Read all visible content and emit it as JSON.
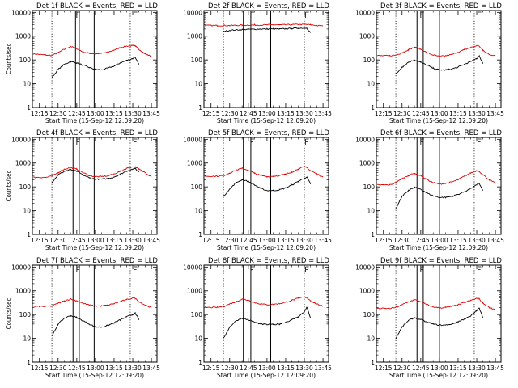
{
  "colors": {
    "events": "#000000",
    "lld": "#dd0000",
    "background": "#ffffff"
  },
  "chart_data": [
    {
      "type": "line",
      "title": "Det 1f BLACK = Events, RED = LLD",
      "xlabel": "Start Time (15-Sep-12 12:09:20)",
      "ylabel": "Counts/sec",
      "xtick_labels": [
        "12:15",
        "12:30",
        "12:45",
        "13:00",
        "13:15",
        "13:30",
        "13:45"
      ],
      "ytick_labels": [
        "1",
        "10",
        "100",
        "1000",
        "10000"
      ],
      "yscale": "log",
      "ylim": [
        1,
        12000
      ],
      "x": [
        "12:10",
        "12:20",
        "12:25",
        "12:30",
        "12:35",
        "12:40",
        "12:45",
        "12:50",
        "12:55",
        "13:00",
        "13:05",
        "13:10",
        "13:15",
        "13:20",
        "13:25",
        "13:30",
        "13:32",
        "13:35",
        "13:40",
        "13:45"
      ],
      "series": [
        {
          "color": "#dd0000",
          "values": [
            180,
            160,
            155,
            200,
            280,
            370,
            300,
            220,
            190,
            180,
            190,
            210,
            260,
            330,
            380,
            400,
            380,
            280,
            180,
            140
          ]
        },
        {
          "color": "#000000",
          "values": [
            null,
            null,
            18,
            40,
            65,
            85,
            75,
            60,
            48,
            40,
            38,
            45,
            55,
            75,
            95,
            115,
            130,
            65,
            null,
            null
          ]
        }
      ],
      "vlines_solid": [
        "12:44",
        "12:47",
        "12:59"
      ],
      "vlines_dotted": [
        "12:25",
        "13:28"
      ],
      "flag_marks": [
        "12:45",
        "13:31"
      ]
    },
    {
      "type": "line",
      "title": "Det 2f BLACK = Events, RED = LLD",
      "xlabel": "Start Time (15-Sep-12 12:09:20)",
      "ylabel": "",
      "xtick_labels": [
        "12:15",
        "12:30",
        "12:45",
        "13:00",
        "13:15",
        "13:30",
        "13:45"
      ],
      "ytick_labels": [
        "1",
        "10",
        "100",
        "1000",
        "10000"
      ],
      "yscale": "log",
      "ylim": [
        1,
        12000
      ],
      "x": [
        "12:10",
        "12:20",
        "12:25",
        "12:30",
        "12:35",
        "12:40",
        "12:45",
        "12:50",
        "12:55",
        "13:00",
        "13:05",
        "13:10",
        "13:15",
        "13:20",
        "13:25",
        "13:30",
        "13:32",
        "13:35",
        "13:40",
        "13:45"
      ],
      "series": [
        {
          "color": "#dd0000",
          "values": [
            2800,
            2800,
            2800,
            2800,
            2850,
            2900,
            2900,
            2950,
            2950,
            3000,
            3000,
            3000,
            3000,
            3050,
            3100,
            3100,
            3100,
            3000,
            2800,
            2700
          ]
        },
        {
          "color": "#000000",
          "values": [
            null,
            null,
            1600,
            1750,
            1850,
            1900,
            1950,
            1950,
            2000,
            2000,
            2000,
            2000,
            2050,
            2100,
            2150,
            2200,
            2200,
            1400,
            null,
            null
          ]
        }
      ],
      "vlines_solid": [
        "12:41",
        "12:47",
        "13:03"
      ],
      "vlines_dotted": [
        "12:25",
        "13:30"
      ],
      "flag_marks": [
        "12:47",
        "13:31"
      ]
    },
    {
      "type": "line",
      "title": "Det 3f BLACK = Events, RED = LLD",
      "xlabel": "Start Time (15-Sep-12 12:09:20)",
      "ylabel": "",
      "xtick_labels": [
        "12:15",
        "12:30",
        "12:45",
        "13:00",
        "13:15",
        "13:30",
        "13:45"
      ],
      "ytick_labels": [
        "1",
        "10",
        "100",
        "1000",
        "10000"
      ],
      "yscale": "log",
      "ylim": [
        1,
        12000
      ],
      "x": [
        "12:10",
        "12:20",
        "12:25",
        "12:30",
        "12:35",
        "12:40",
        "12:45",
        "12:50",
        "12:55",
        "13:00",
        "13:05",
        "13:10",
        "13:15",
        "13:20",
        "13:25",
        "13:30",
        "13:32",
        "13:35",
        "13:40",
        "13:45"
      ],
      "series": [
        {
          "color": "#dd0000",
          "values": [
            150,
            150,
            160,
            200,
            270,
            340,
            280,
            200,
            160,
            140,
            150,
            170,
            210,
            270,
            330,
            400,
            380,
            250,
            170,
            150
          ]
        },
        {
          "color": "#000000",
          "values": [
            null,
            null,
            25,
            50,
            80,
            100,
            80,
            60,
            45,
            38,
            38,
            42,
            50,
            65,
            85,
            115,
            150,
            70,
            null,
            null
          ]
        }
      ],
      "vlines_solid": [
        "12:42",
        "12:47",
        "13:00"
      ],
      "vlines_dotted": [
        "12:25",
        "13:28"
      ],
      "flag_marks": [
        "12:45",
        "13:31"
      ]
    },
    {
      "type": "line",
      "title": "Det 4f BLACK = Events, RED = LLD",
      "xlabel": "Start Time (15-Sep-12 12:09:20)",
      "ylabel": "Counts/sec",
      "xtick_labels": [
        "12:15",
        "12:30",
        "12:45",
        "13:00",
        "13:15",
        "13:30",
        "13:45"
      ],
      "ytick_labels": [
        "1",
        "10",
        "100",
        "1000",
        "10000"
      ],
      "yscale": "log",
      "ylim": [
        1,
        12000
      ],
      "x": [
        "12:10",
        "12:20",
        "12:25",
        "12:30",
        "12:35",
        "12:40",
        "12:45",
        "12:50",
        "12:55",
        "13:00",
        "13:05",
        "13:10",
        "13:15",
        "13:20",
        "13:25",
        "13:30",
        "13:32",
        "13:35",
        "13:40",
        "13:45"
      ],
      "series": [
        {
          "color": "#dd0000",
          "values": [
            250,
            250,
            280,
            400,
            550,
            650,
            550,
            400,
            300,
            270,
            270,
            290,
            350,
            450,
            600,
            700,
            700,
            550,
            400,
            270
          ]
        },
        {
          "color": "#000000",
          "values": [
            null,
            null,
            150,
            320,
            450,
            530,
            450,
            320,
            240,
            210,
            210,
            220,
            260,
            340,
            460,
            560,
            580,
            420,
            null,
            null
          ]
        }
      ],
      "vlines_solid": [
        "12:42",
        "12:47",
        "12:59"
      ],
      "vlines_dotted": [
        "12:25",
        "13:28"
      ],
      "flag_marks": [
        "12:45",
        "13:31"
      ]
    },
    {
      "type": "line",
      "title": "Det 5f BLACK = Events, RED = LLD",
      "xlabel": "Start Time (15-Sep-12 12:09:20)",
      "ylabel": "",
      "xtick_labels": [
        "12:15",
        "12:30",
        "12:45",
        "13:00",
        "13:15",
        "13:30",
        "13:45"
      ],
      "ytick_labels": [
        "1",
        "10",
        "100",
        "1000",
        "10000"
      ],
      "yscale": "log",
      "ylim": [
        1,
        12000
      ],
      "x": [
        "12:10",
        "12:20",
        "12:25",
        "12:30",
        "12:35",
        "12:40",
        "12:45",
        "12:50",
        "12:55",
        "13:00",
        "13:05",
        "13:10",
        "13:15",
        "13:20",
        "13:25",
        "13:30",
        "13:32",
        "13:35",
        "13:40",
        "13:45"
      ],
      "series": [
        {
          "color": "#dd0000",
          "values": [
            280,
            280,
            300,
            380,
            500,
            600,
            500,
            370,
            300,
            270,
            280,
            300,
            340,
            420,
            560,
            700,
            650,
            480,
            350,
            260
          ]
        },
        {
          "color": "#000000",
          "values": [
            null,
            null,
            40,
            80,
            150,
            200,
            170,
            120,
            85,
            70,
            70,
            75,
            90,
            120,
            170,
            230,
            260,
            130,
            null,
            null
          ]
        }
      ],
      "vlines_solid": [
        "12:41",
        "12:47",
        "13:03"
      ],
      "vlines_dotted": [
        "12:25",
        "13:30"
      ],
      "flag_marks": [
        "12:47",
        "13:31"
      ]
    },
    {
      "type": "line",
      "title": "Det 6f BLACK = Events, RED = LLD",
      "xlabel": "Start Time (15-Sep-12 12:09:20)",
      "ylabel": "",
      "xtick_labels": [
        "12:15",
        "12:30",
        "12:45",
        "13:00",
        "13:15",
        "13:30",
        "13:45"
      ],
      "ytick_labels": [
        "1",
        "10",
        "100",
        "1000",
        "10000"
      ],
      "yscale": "log",
      "ylim": [
        1,
        12000
      ],
      "x": [
        "12:10",
        "12:20",
        "12:25",
        "12:30",
        "12:35",
        "12:40",
        "12:45",
        "12:50",
        "12:55",
        "13:00",
        "13:05",
        "13:10",
        "13:15",
        "13:20",
        "13:25",
        "13:30",
        "13:32",
        "13:35",
        "13:40",
        "13:45"
      ],
      "series": [
        {
          "color": "#dd0000",
          "values": [
            120,
            120,
            150,
            220,
            300,
            370,
            300,
            200,
            150,
            130,
            140,
            160,
            200,
            280,
            380,
            480,
            450,
            320,
            200,
            140
          ]
        },
        {
          "color": "#000000",
          "values": [
            null,
            null,
            12,
            40,
            70,
            95,
            80,
            55,
            42,
            36,
            36,
            40,
            48,
            62,
            85,
            120,
            140,
            70,
            null,
            null
          ]
        }
      ],
      "vlines_solid": [
        "12:42",
        "12:47",
        "13:00"
      ],
      "vlines_dotted": [
        "12:25",
        "13:28"
      ],
      "flag_marks": [
        "12:45",
        "13:31"
      ]
    },
    {
      "type": "line",
      "title": "Det 7f BLACK = Events, RED = LLD",
      "xlabel": "Start Time (15-Sep-12 12:09:20)",
      "ylabel": "Counts/sec",
      "xtick_labels": [
        "12:15",
        "12:30",
        "12:45",
        "13:00",
        "13:15",
        "13:30",
        "13:45"
      ],
      "ytick_labels": [
        "1",
        "10",
        "100",
        "1000",
        "10000"
      ],
      "yscale": "log",
      "ylim": [
        1,
        12000
      ],
      "x": [
        "12:10",
        "12:20",
        "12:25",
        "12:30",
        "12:35",
        "12:40",
        "12:45",
        "12:50",
        "12:55",
        "13:00",
        "13:05",
        "13:10",
        "13:15",
        "13:20",
        "13:25",
        "13:30",
        "13:32",
        "13:35",
        "13:40",
        "13:45"
      ],
      "series": [
        {
          "color": "#dd0000",
          "values": [
            220,
            220,
            230,
            300,
            380,
            450,
            380,
            300,
            250,
            230,
            230,
            250,
            290,
            350,
            420,
            500,
            480,
            350,
            250,
            200
          ]
        },
        {
          "color": "#000000",
          "values": [
            null,
            null,
            12,
            40,
            70,
            90,
            75,
            55,
            40,
            30,
            30,
            35,
            45,
            60,
            80,
            100,
            120,
            60,
            null,
            null
          ]
        }
      ],
      "vlines_solid": [
        "12:42",
        "12:47",
        "12:59"
      ],
      "vlines_dotted": [
        "12:25",
        "13:28"
      ],
      "flag_marks": [
        "12:45",
        "13:31"
      ]
    },
    {
      "type": "line",
      "title": "Det 8f BLACK = Events, RED = LLD",
      "xlabel": "Start Time (15-Sep-12 12:09:20)",
      "ylabel": "",
      "xtick_labels": [
        "12:15",
        "12:30",
        "12:45",
        "13:00",
        "13:15",
        "13:30",
        "13:45"
      ],
      "ytick_labels": [
        "1",
        "10",
        "100",
        "1000",
        "10000"
      ],
      "yscale": "log",
      "ylim": [
        1,
        12000
      ],
      "x": [
        "12:10",
        "12:20",
        "12:25",
        "12:30",
        "12:35",
        "12:40",
        "12:45",
        "12:50",
        "12:55",
        "13:00",
        "13:05",
        "13:10",
        "13:15",
        "13:20",
        "13:25",
        "13:30",
        "13:32",
        "13:35",
        "13:40",
        "13:45"
      ],
      "series": [
        {
          "color": "#dd0000",
          "values": [
            200,
            200,
            220,
            280,
            350,
            450,
            400,
            320,
            280,
            260,
            270,
            290,
            330,
            400,
            480,
            550,
            520,
            380,
            280,
            220
          ]
        },
        {
          "color": "#000000",
          "values": [
            null,
            null,
            10,
            30,
            55,
            70,
            60,
            48,
            40,
            38,
            38,
            40,
            48,
            60,
            80,
            130,
            210,
            70,
            null,
            null
          ]
        }
      ],
      "vlines_solid": [
        "12:41",
        "12:47",
        "13:03"
      ],
      "vlines_dotted": [
        "12:25",
        "13:30"
      ],
      "flag_marks": [
        "12:47",
        "13:31"
      ]
    },
    {
      "type": "line",
      "title": "Det 9f BLACK = Events, RED = LLD",
      "xlabel": "Start Time (15-Sep-12 12:09:20)",
      "ylabel": "",
      "xtick_labels": [
        "12:15",
        "12:30",
        "12:45",
        "13:00",
        "13:15",
        "13:30",
        "13:45"
      ],
      "ytick_labels": [
        "1",
        "10",
        "100",
        "1000",
        "10000"
      ],
      "yscale": "log",
      "ylim": [
        1,
        12000
      ],
      "x": [
        "12:10",
        "12:20",
        "12:25",
        "12:30",
        "12:35",
        "12:40",
        "12:45",
        "12:50",
        "12:55",
        "13:00",
        "13:05",
        "13:10",
        "13:15",
        "13:20",
        "13:25",
        "13:30",
        "13:32",
        "13:35",
        "13:40",
        "13:45"
      ],
      "series": [
        {
          "color": "#dd0000",
          "values": [
            180,
            180,
            200,
            260,
            340,
            420,
            350,
            260,
            210,
            190,
            200,
            220,
            260,
            320,
            390,
            480,
            450,
            300,
            200,
            160
          ]
        },
        {
          "color": "#000000",
          "values": [
            null,
            null,
            10,
            30,
            55,
            75,
            62,
            48,
            40,
            36,
            36,
            40,
            50,
            65,
            85,
            150,
            190,
            70,
            null,
            null
          ]
        }
      ],
      "vlines_solid": [
        "12:42",
        "12:47",
        "13:00"
      ],
      "vlines_dotted": [
        "12:25",
        "13:28"
      ],
      "flag_marks": [
        "12:45",
        "13:31"
      ]
    }
  ]
}
